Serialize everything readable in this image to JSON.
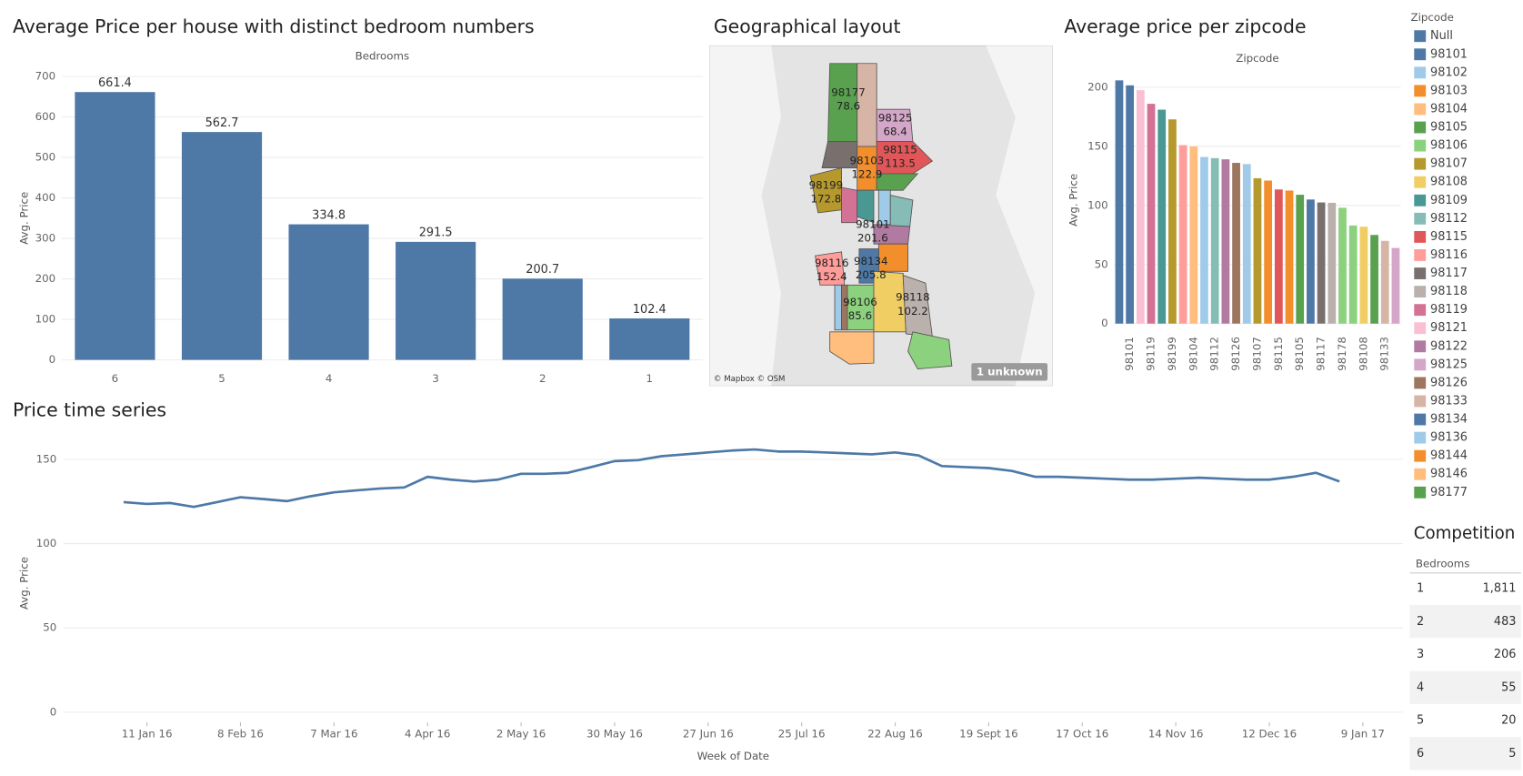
{
  "chart_data": [
    {
      "type": "bar",
      "title": "Average Price per house with distinct bedroom numbers",
      "header": "Bedrooms",
      "ylabel": "Avg. Price",
      "categories": [
        "6",
        "5",
        "4",
        "3",
        "2",
        "1"
      ],
      "values": [
        661.4,
        562.7,
        334.8,
        291.5,
        200.7,
        102.4
      ],
      "color": "#4e79a7",
      "ylim": [
        -20,
        720
      ],
      "yticks": [
        0,
        100,
        200,
        300,
        400,
        500,
        600,
        700
      ],
      "grid": true,
      "value_labels_shown": true
    },
    {
      "type": "map",
      "title": "Geographical layout",
      "regions": [
        {
          "zipcode": "98177",
          "value": 78.6
        },
        {
          "zipcode": "98125",
          "value": 68.4
        },
        {
          "zipcode": "98103",
          "value": 122.9
        },
        {
          "zipcode": "98115",
          "value": 113.5
        },
        {
          "zipcode": "98199",
          "value": 172.8
        },
        {
          "zipcode": "98101",
          "value": 201.6
        },
        {
          "zipcode": "98116",
          "value": 152.4
        },
        {
          "zipcode": "98134",
          "value": 205.8
        },
        {
          "zipcode": "98106",
          "value": 85.6
        },
        {
          "zipcode": "98118",
          "value": 102.2
        }
      ],
      "unknown_label": "1 unknown",
      "attribution": "© Mapbox © OSM"
    },
    {
      "type": "bar",
      "title": "Average price per zipcode",
      "header": "Zipcode",
      "ylabel": "Avg. Price",
      "categories": [
        null,
        "98101",
        null,
        "98119",
        null,
        "98199",
        null,
        "98104",
        null,
        "98112",
        null,
        "98126",
        null,
        "98107",
        null,
        "98115",
        null,
        "98105",
        null,
        "98117",
        null,
        "98178",
        null,
        "98108",
        null,
        "98133",
        null
      ],
      "values": [
        205.8,
        201.6,
        197.5,
        186,
        181,
        172.8,
        151,
        150,
        141,
        140,
        139,
        136,
        135,
        123,
        121,
        113.5,
        112.6,
        109,
        105,
        102.5,
        102.2,
        98,
        83,
        82,
        75,
        70,
        64
      ],
      "colors": [
        "#4e79a7",
        "#4e79a7",
        "#fabfd2",
        "#d37295",
        "#499894",
        "#b6992d",
        "#ff9d9a",
        "#ffbe7d",
        "#a0cbe8",
        "#86bcb6",
        "#b07aa1",
        "#9d7660",
        "#a0cbe8",
        "#b6992d",
        "#f28e2b",
        "#e15759",
        "#f28e2b",
        "#59a14f",
        "#4e79a7",
        "#79706e",
        "#bab0ac",
        "#8cd17d",
        "#8cd17d",
        "#f1ce63",
        "#59a14f",
        "#d7b5a6",
        "#d4a6c8"
      ],
      "ylim": [
        -7,
        216
      ],
      "yticks": [
        0,
        50,
        100,
        150,
        200
      ],
      "grid": true
    },
    {
      "type": "line",
      "title": "Price time series",
      "xlabel": "Week of Date",
      "ylabel": "Avg. Price",
      "color": "#4e79a7",
      "x": [
        "2016-01-04",
        "2016-01-11",
        "2016-01-18",
        "2016-01-25",
        "2016-02-01",
        "2016-02-08",
        "2016-02-15",
        "2016-02-22",
        "2016-02-29",
        "2016-03-07",
        "2016-03-14",
        "2016-03-21",
        "2016-03-28",
        "2016-04-04",
        "2016-04-11",
        "2016-04-18",
        "2016-04-25",
        "2016-05-02",
        "2016-05-09",
        "2016-05-16",
        "2016-05-23",
        "2016-05-30",
        "2016-06-06",
        "2016-06-13",
        "2016-06-20",
        "2016-06-27",
        "2016-07-04",
        "2016-07-11",
        "2016-07-18",
        "2016-07-25",
        "2016-08-01",
        "2016-08-08",
        "2016-08-15",
        "2016-08-22",
        "2016-08-29",
        "2016-09-05",
        "2016-09-12",
        "2016-09-19",
        "2016-09-26",
        "2016-10-03",
        "2016-10-10",
        "2016-10-17",
        "2016-10-24",
        "2016-10-31",
        "2016-11-07",
        "2016-11-14",
        "2016-11-21",
        "2016-11-28",
        "2016-12-05",
        "2016-12-12",
        "2016-12-19",
        "2016-12-26",
        "2017-01-02"
      ],
      "values": [
        124.6,
        123.5,
        124.1,
        121.8,
        124.6,
        127.5,
        126.4,
        125.2,
        128.1,
        130.4,
        131.6,
        132.7,
        133.3,
        139.6,
        137.9,
        136.8,
        137.9,
        141.4,
        141.4,
        142.0,
        145.4,
        148.9,
        149.5,
        151.8,
        152.9,
        154.1,
        155.2,
        155.8,
        154.6,
        154.6,
        154.1,
        153.5,
        152.9,
        154.1,
        152.3,
        146.0,
        145.4,
        144.8,
        143.1,
        139.6,
        139.6,
        139.1,
        138.5,
        137.9,
        137.9,
        138.5,
        139.1,
        138.5,
        137.9,
        137.9,
        139.6,
        142.0,
        136.8
      ],
      "xlim": [
        "2015-12-17",
        "2017-01-21"
      ],
      "xticks": [
        {
          "value": "2016-01-11",
          "label": "11 Jan 16"
        },
        {
          "value": "2016-02-08",
          "label": "8 Feb 16"
        },
        {
          "value": "2016-03-07",
          "label": "7 Mar 16"
        },
        {
          "value": "2016-04-04",
          "label": "4 Apr 16"
        },
        {
          "value": "2016-05-02",
          "label": "2 May 16"
        },
        {
          "value": "2016-05-30",
          "label": "30 May 16"
        },
        {
          "value": "2016-06-27",
          "label": "27 Jun 16"
        },
        {
          "value": "2016-07-25",
          "label": "25 Jul 16"
        },
        {
          "value": "2016-08-22",
          "label": "22 Aug 16"
        },
        {
          "value": "2016-09-19",
          "label": "19 Sept 16"
        },
        {
          "value": "2016-10-17",
          "label": "17 Oct 16"
        },
        {
          "value": "2016-11-14",
          "label": "14 Nov 16"
        },
        {
          "value": "2016-12-12",
          "label": "12 Dec 16"
        },
        {
          "value": "2017-01-09",
          "label": "9 Jan 17"
        }
      ],
      "ylim": [
        -6,
        159
      ],
      "yticks": [
        0,
        50,
        100,
        150
      ],
      "grid": true
    }
  ],
  "zipcode_legend": {
    "title": "Zipcode",
    "items": [
      {
        "label": "Null",
        "color": "#4e79a7"
      },
      {
        "label": "98101",
        "color": "#4e79a7"
      },
      {
        "label": "98102",
        "color": "#a0cbe8"
      },
      {
        "label": "98103",
        "color": "#f28e2b"
      },
      {
        "label": "98104",
        "color": "#ffbe7d"
      },
      {
        "label": "98105",
        "color": "#59a14f"
      },
      {
        "label": "98106",
        "color": "#8cd17d"
      },
      {
        "label": "98107",
        "color": "#b6992d"
      },
      {
        "label": "98108",
        "color": "#f1ce63"
      },
      {
        "label": "98109",
        "color": "#499894"
      },
      {
        "label": "98112",
        "color": "#86bcb6"
      },
      {
        "label": "98115",
        "color": "#e15759"
      },
      {
        "label": "98116",
        "color": "#ff9d9a"
      },
      {
        "label": "98117",
        "color": "#79706e"
      },
      {
        "label": "98118",
        "color": "#bab0ac"
      },
      {
        "label": "98119",
        "color": "#d37295"
      },
      {
        "label": "98121",
        "color": "#fabfd2"
      },
      {
        "label": "98122",
        "color": "#b07aa1"
      },
      {
        "label": "98125",
        "color": "#d4a6c8"
      },
      {
        "label": "98126",
        "color": "#9d7660"
      },
      {
        "label": "98133",
        "color": "#d7b5a6"
      },
      {
        "label": "98134",
        "color": "#4e79a7"
      },
      {
        "label": "98136",
        "color": "#a0cbe8"
      },
      {
        "label": "98144",
        "color": "#f28e2b"
      },
      {
        "label": "98146",
        "color": "#ffbe7d"
      },
      {
        "label": "98177",
        "color": "#59a14f"
      }
    ]
  },
  "competition_table": {
    "title": "Competition",
    "header": "Bedrooms",
    "rows": [
      [
        "1",
        "1,811"
      ],
      [
        "2",
        "483"
      ],
      [
        "3",
        "206"
      ],
      [
        "4",
        "55"
      ],
      [
        "5",
        "20"
      ],
      [
        "6",
        "5"
      ]
    ]
  }
}
